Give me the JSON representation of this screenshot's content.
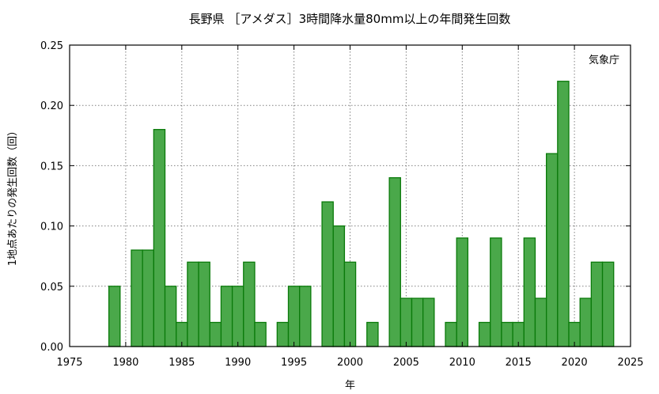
{
  "chart_data": {
    "type": "bar",
    "title": "長野県 ［アメダス］3時間降水量80mm以上の年間発生回数",
    "xlabel": "年",
    "ylabel": "1地点あたりの発生回数（回）",
    "annotation": "気象庁",
    "xlim": [
      1975,
      2025
    ],
    "ylim": [
      0,
      0.25
    ],
    "grid": true,
    "xticks": [
      1975,
      1980,
      1985,
      1990,
      1995,
      2000,
      2005,
      2010,
      2015,
      2020,
      2025
    ],
    "xtick_labels": [
      "1975",
      "1980",
      "1985",
      "1990",
      "1995",
      "2000",
      "2005",
      "2010",
      "2015",
      "2020",
      "2025"
    ],
    "yticks": [
      0,
      0.05,
      0.1,
      0.15,
      0.2,
      0.25
    ],
    "ytick_labels": [
      "0.00",
      "0.05",
      "0.10",
      "0.15",
      "0.20",
      "0.25"
    ],
    "x": [
      1979,
      1980,
      1981,
      1982,
      1983,
      1984,
      1985,
      1986,
      1987,
      1988,
      1989,
      1990,
      1991,
      1992,
      1993,
      1994,
      1995,
      1996,
      1997,
      1998,
      1999,
      2000,
      2001,
      2002,
      2003,
      2004,
      2005,
      2006,
      2007,
      2008,
      2009,
      2010,
      2011,
      2012,
      2013,
      2014,
      2015,
      2016,
      2017,
      2018,
      2019,
      2020,
      2021,
      2022,
      2023
    ],
    "values": [
      0.05,
      0,
      0.08,
      0.08,
      0.18,
      0.05,
      0.02,
      0.07,
      0.07,
      0.02,
      0.05,
      0.05,
      0.07,
      0.02,
      0,
      0.02,
      0.05,
      0.05,
      0,
      0.12,
      0.1,
      0.07,
      0,
      0.02,
      0,
      0.14,
      0.04,
      0.04,
      0.04,
      0,
      0.02,
      0.09,
      0,
      0.02,
      0.09,
      0.02,
      0.02,
      0.09,
      0.04,
      0.16,
      0.22,
      0.02,
      0.04,
      0.07,
      0.07
    ],
    "colors": {
      "fill": "#4aa84a",
      "stroke": "#0a7a0a"
    }
  }
}
